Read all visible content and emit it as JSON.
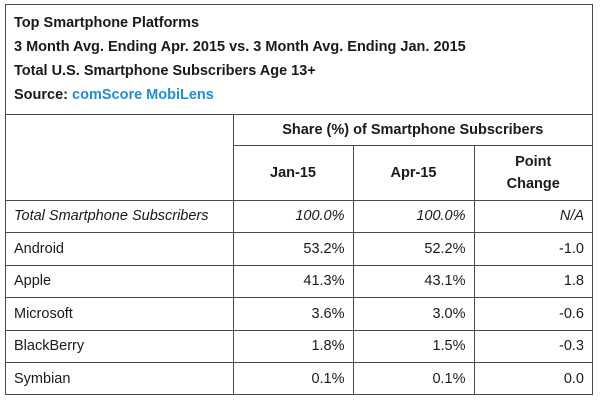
{
  "header": {
    "title": "Top Smartphone Platforms",
    "subtitle": "3 Month Avg. Ending Apr. 2015 vs. 3 Month Avg. Ending Jan. 2015",
    "population": "Total U.S. Smartphone Subscribers Age 13+",
    "source_label": "Source:",
    "source_name": "comScore MobiLens"
  },
  "table": {
    "group_header": "Share (%) of Smartphone Subscribers",
    "columns": [
      "Jan-15",
      "Apr-15",
      "Point Change"
    ]
  },
  "chart_data": {
    "type": "table",
    "title": "Top Smartphone Platforms",
    "columns": [
      "Jan-15",
      "Apr-15",
      "Point Change"
    ],
    "rows": [
      {
        "label": "Total Smartphone Subscribers",
        "values": [
          "100.0%",
          "100.0%",
          "N/A"
        ]
      },
      {
        "label": "Android",
        "values": [
          "53.2%",
          "52.2%",
          "-1.0"
        ]
      },
      {
        "label": "Apple",
        "values": [
          "41.3%",
          "43.1%",
          "1.8"
        ]
      },
      {
        "label": "Microsoft",
        "values": [
          "3.6%",
          "3.0%",
          "-0.6"
        ]
      },
      {
        "label": "BlackBerry",
        "values": [
          "1.8%",
          "1.5%",
          "-0.3"
        ]
      },
      {
        "label": "Symbian",
        "values": [
          "0.1%",
          "0.1%",
          "0.0"
        ]
      }
    ]
  },
  "colors": {
    "source_accent": "#1f8fd0",
    "border": "#4a4a4a"
  }
}
